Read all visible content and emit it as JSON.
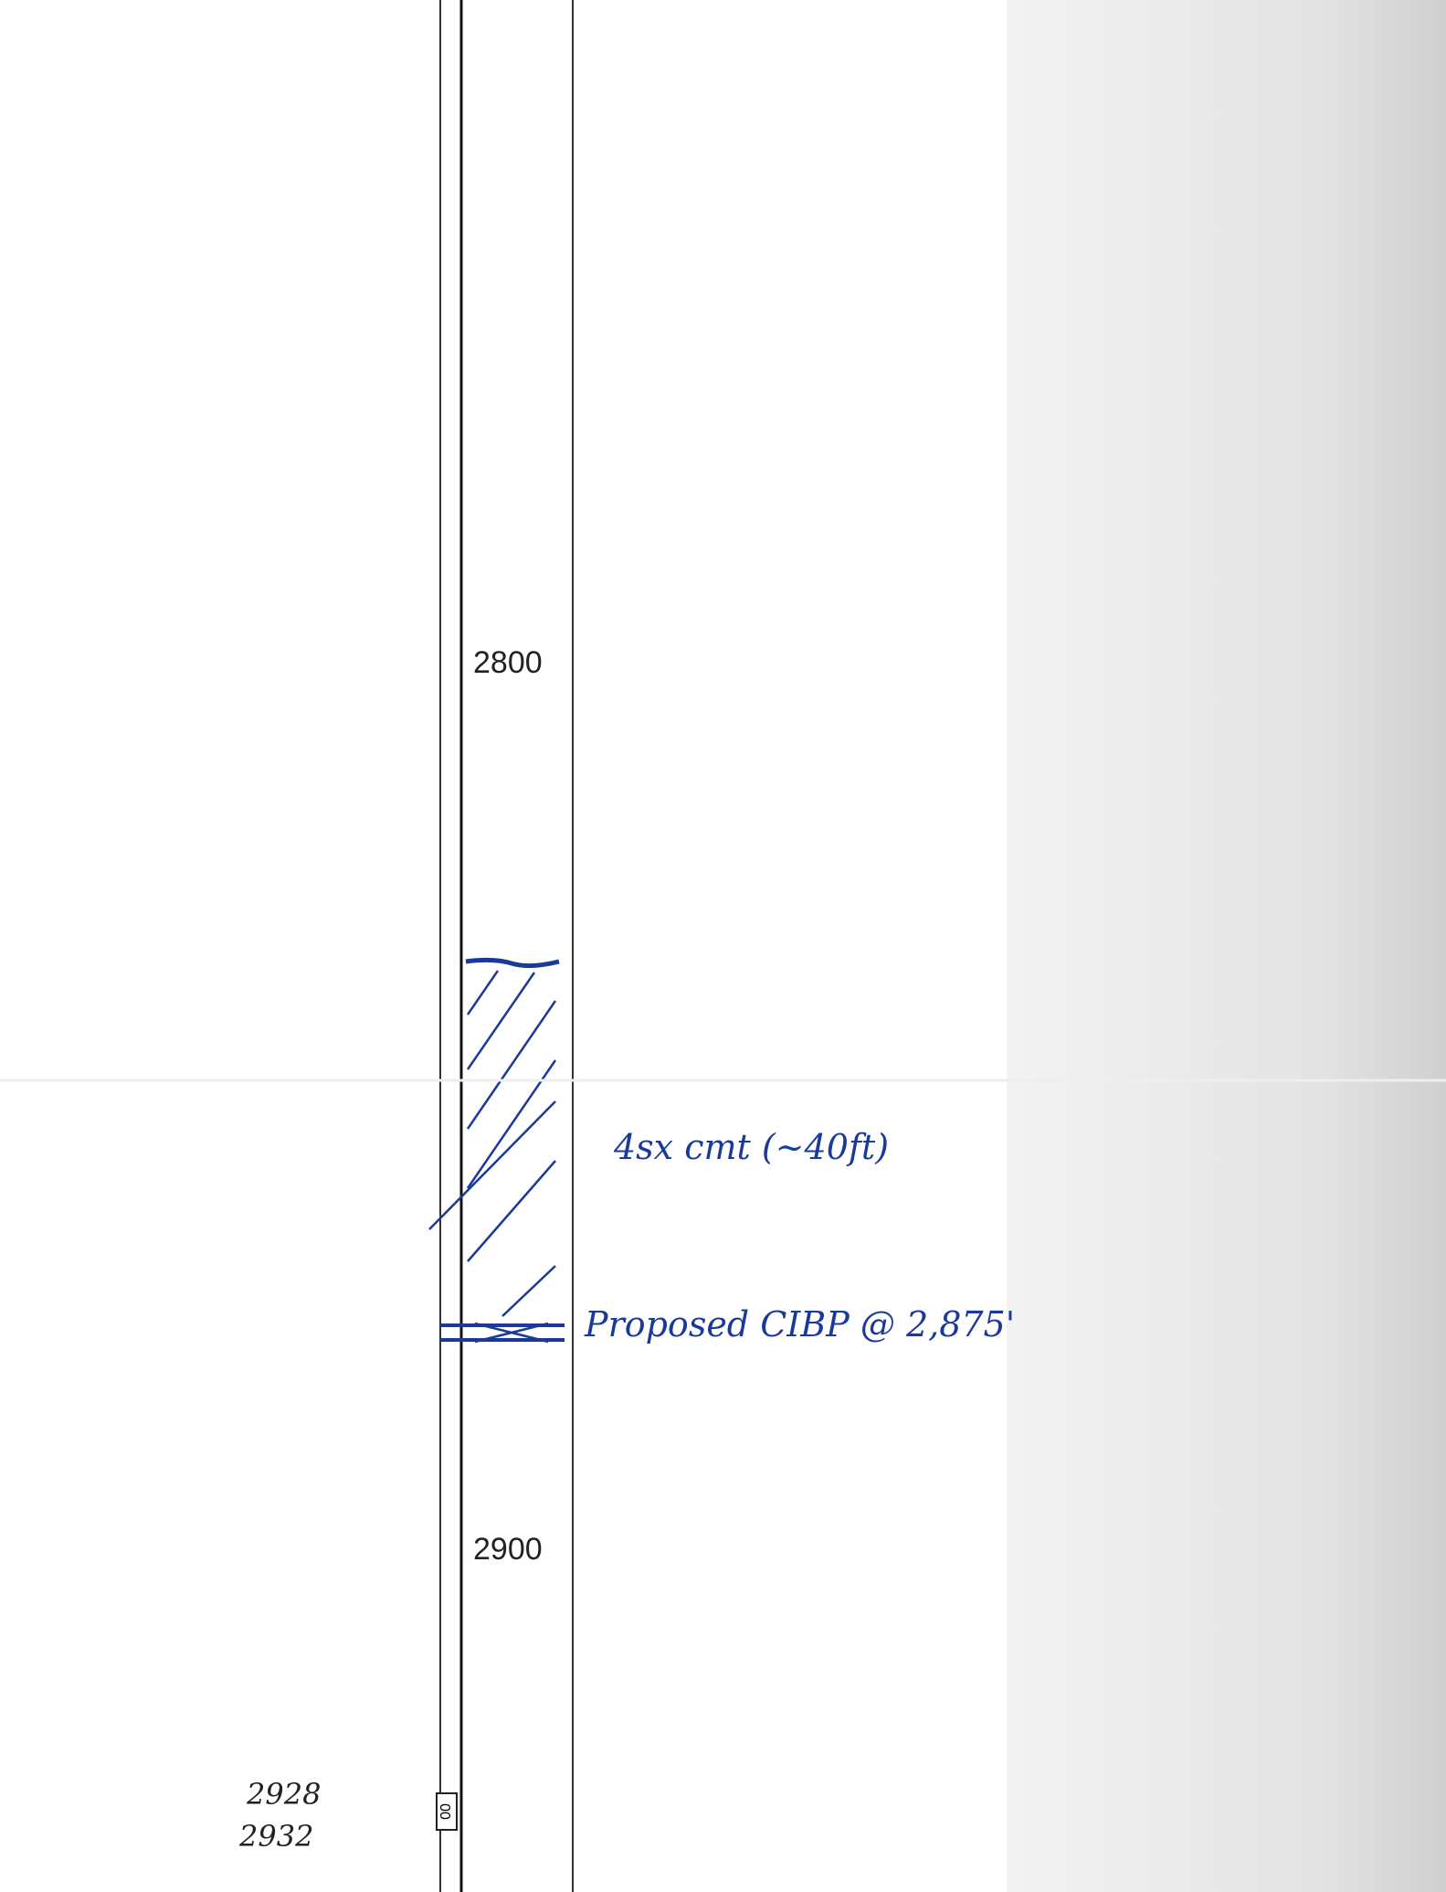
{
  "depth_labels": [
    "2800",
    "2900"
  ],
  "annotations": {
    "cement": "4sx cmt (~40ft)",
    "plug": "Proposed CIBP @ 2,875'"
  },
  "handwritten_depths": [
    "2928",
    "2932"
  ],
  "box_label": "00"
}
